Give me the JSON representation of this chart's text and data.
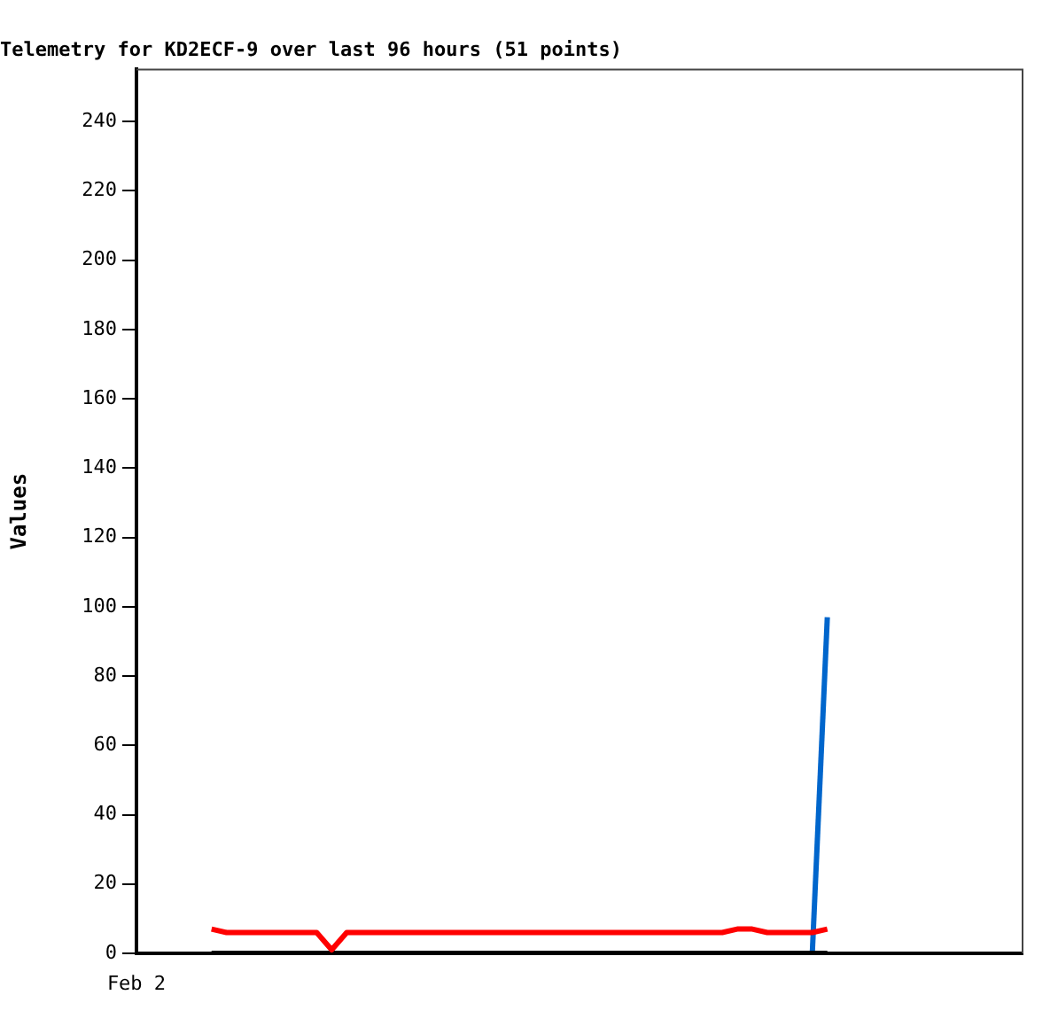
{
  "chart_data": {
    "type": "line",
    "title": "Telemetry for KD2ECF-9 over last 96 hours (51 points)",
    "ylabel": "Values",
    "annotations": [
      "Feb 2"
    ],
    "categories": [
      null,
      null,
      null,
      null,
      null,
      null,
      null,
      null,
      null,
      null,
      null,
      null,
      null,
      null,
      null,
      null,
      null,
      null,
      null,
      null,
      null,
      null,
      null,
      null,
      null,
      null,
      null,
      null,
      null,
      null,
      null,
      null,
      null,
      null,
      null,
      null,
      null,
      null,
      null,
      null,
      null,
      null,
      null,
      null,
      null,
      null,
      null,
      null,
      null,
      null,
      null,
      null,
      null,
      null,
      null,
      null,
      null,
      null,
      null,
      null
    ],
    "ylim": [
      0,
      255
    ],
    "yticks": [
      0,
      20,
      40,
      60,
      80,
      100,
      120,
      140,
      160,
      180,
      200,
      220,
      240
    ],
    "legend": false,
    "marker": "none",
    "line_style": "solid",
    "series": [
      {
        "color": "#ff0000",
        "values": [
          null,
          null,
          null,
          null,
          null,
          7,
          6,
          6,
          6,
          6,
          6,
          6,
          6,
          1,
          6,
          6,
          6,
          6,
          6,
          6,
          6,
          6,
          6,
          6,
          6,
          6,
          6,
          6,
          6,
          6,
          6,
          6,
          6,
          6,
          6,
          6,
          6,
          6,
          6,
          6,
          7,
          7,
          6,
          6,
          6,
          6,
          7,
          null,
          null,
          null,
          null,
          null,
          null,
          null,
          null,
          null,
          null,
          null,
          null,
          null
        ]
      },
      {
        "color": "#000000",
        "values": [
          null,
          null,
          null,
          null,
          null,
          0,
          0,
          0,
          0,
          0,
          0,
          0,
          0,
          0,
          0,
          0,
          0,
          0,
          0,
          0,
          0,
          0,
          0,
          0,
          0,
          0,
          0,
          0,
          0,
          0,
          0,
          0,
          0,
          0,
          0,
          0,
          0,
          0,
          0,
          0,
          0,
          0,
          0,
          0,
          0,
          0,
          0,
          null,
          null,
          null,
          null,
          null,
          null,
          null,
          null,
          null,
          null,
          null,
          null,
          null
        ]
      },
      {
        "color": "#0066cc",
        "values": [
          null,
          null,
          null,
          null,
          null,
          null,
          null,
          null,
          null,
          null,
          null,
          null,
          null,
          null,
          null,
          null,
          null,
          null,
          null,
          null,
          null,
          null,
          null,
          null,
          null,
          null,
          null,
          null,
          null,
          null,
          null,
          null,
          null,
          null,
          null,
          null,
          null,
          null,
          null,
          null,
          null,
          null,
          null,
          null,
          null,
          0,
          97,
          null,
          null,
          null,
          null,
          null,
          null,
          null,
          null,
          null,
          null,
          null,
          null,
          null
        ]
      }
    ]
  }
}
